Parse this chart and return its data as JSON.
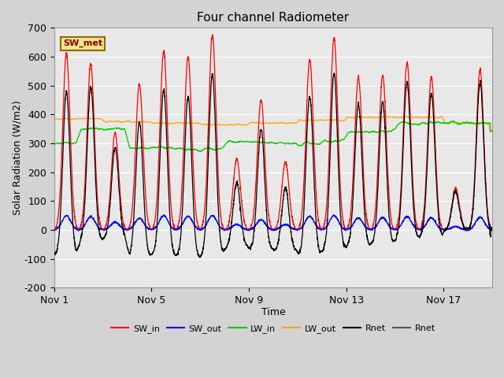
{
  "title": "Four channel Radiometer",
  "xlabel": "Time",
  "ylabel": "Solar Radiation (W/m2)",
  "ylim": [
    -200,
    700
  ],
  "yticks": [
    -200,
    -100,
    0,
    100,
    200,
    300,
    400,
    500,
    600,
    700
  ],
  "xtick_labels": [
    "Nov 1",
    "Nov 5",
    "Nov 9",
    "Nov 13",
    "Nov 17"
  ],
  "xtick_positions": [
    0,
    4,
    8,
    12,
    16
  ],
  "annotation_text": "SW_met",
  "annotation_bg": "#f0e68c",
  "annotation_border": "#8b6914",
  "fig_bg": "#d3d3d3",
  "plot_bg": "#e8e8e8",
  "colors": {
    "SW_in": "#ff0000",
    "SW_out": "#0000ff",
    "LW_in": "#00cc00",
    "LW_out": "#ffa500",
    "Rnet": "#000000"
  },
  "n_days": 18,
  "seed": 42,
  "day_peaks_SW_in": [
    610,
    575,
    335,
    505,
    620,
    600,
    675,
    245,
    450,
    235,
    590,
    665,
    530,
    535,
    580,
    530,
    145,
    555
  ]
}
